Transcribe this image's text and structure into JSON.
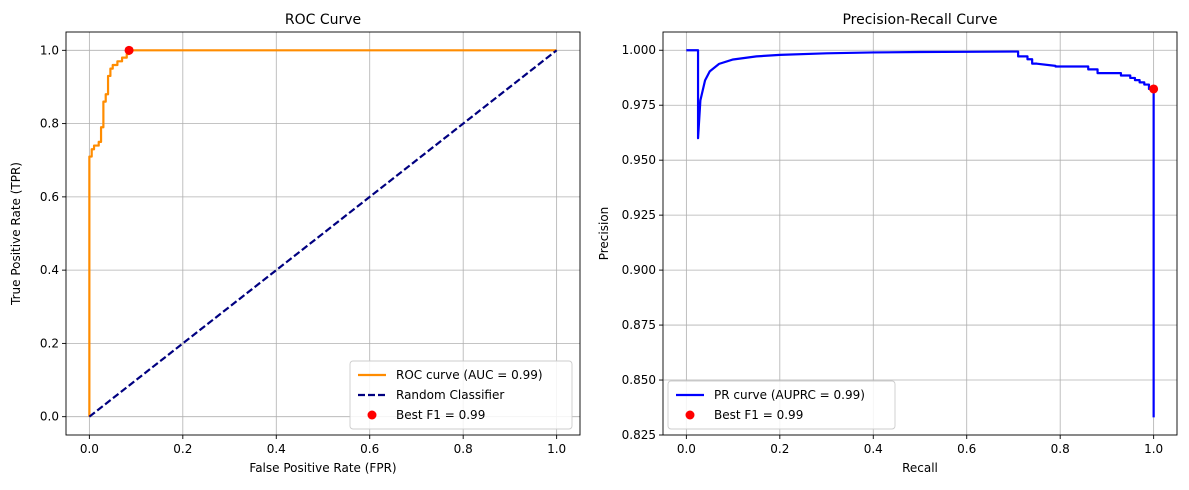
{
  "chart_data": [
    {
      "type": "line",
      "title": "ROC Curve",
      "xlabel": "False Positive Rate (FPR)",
      "ylabel": "True Positive Rate (TPR)",
      "xlim": [
        -0.05,
        1.05
      ],
      "ylim": [
        -0.05,
        1.05
      ],
      "xticks": [
        0.0,
        0.2,
        0.4,
        0.6,
        0.8,
        1.0
      ],
      "xtick_labels": [
        "0.0",
        "0.2",
        "0.4",
        "0.6",
        "0.8",
        "1.0"
      ],
      "yticks": [
        0.0,
        0.2,
        0.4,
        0.6,
        0.8,
        1.0
      ],
      "ytick_labels": [
        "0.0",
        "0.2",
        "0.4",
        "0.6",
        "0.8",
        "1.0"
      ],
      "grid": true,
      "legend_position": "lower-right",
      "series": [
        {
          "name": "ROC curve (AUC = 0.99)",
          "style": "solid",
          "color": "#ff8c00",
          "x": [
            0.0,
            0.0,
            0.005,
            0.005,
            0.01,
            0.01,
            0.02,
            0.02,
            0.025,
            0.025,
            0.03,
            0.03,
            0.035,
            0.035,
            0.04,
            0.04,
            0.045,
            0.045,
            0.05,
            0.05,
            0.06,
            0.06,
            0.07,
            0.07,
            0.08,
            0.08,
            0.085,
            0.085,
            1.0
          ],
          "y": [
            0.0,
            0.71,
            0.71,
            0.73,
            0.73,
            0.74,
            0.74,
            0.75,
            0.75,
            0.79,
            0.79,
            0.86,
            0.86,
            0.88,
            0.88,
            0.93,
            0.93,
            0.95,
            0.95,
            0.96,
            0.96,
            0.97,
            0.97,
            0.98,
            0.98,
            0.99,
            0.99,
            1.0,
            1.0
          ]
        },
        {
          "name": "Random Classifier",
          "style": "dashed",
          "color": "#000080",
          "x": [
            0.0,
            1.0
          ],
          "y": [
            0.0,
            1.0
          ]
        }
      ],
      "points": [
        {
          "name": "Best F1 = 0.99",
          "color": "#ff0000",
          "x": 0.085,
          "y": 1.0
        }
      ]
    },
    {
      "type": "line",
      "title": "Precision-Recall Curve",
      "xlabel": "Recall",
      "ylabel": "Precision",
      "xlim": [
        -0.05,
        1.05
      ],
      "ylim": [
        0.825,
        1.0083
      ],
      "xticks": [
        0.0,
        0.2,
        0.4,
        0.6,
        0.8,
        1.0
      ],
      "xtick_labels": [
        "0.0",
        "0.2",
        "0.4",
        "0.6",
        "0.8",
        "1.0"
      ],
      "yticks": [
        0.825,
        0.85,
        0.875,
        0.9,
        0.925,
        0.95,
        0.975,
        1.0
      ],
      "ytick_labels": [
        "0.825",
        "0.850",
        "0.875",
        "0.900",
        "0.925",
        "0.950",
        "0.975",
        "1.000"
      ],
      "grid": true,
      "legend_position": "lower-left",
      "series": [
        {
          "name": "PR curve (AUPRC = 0.99)",
          "style": "solid",
          "color": "#0000ff",
          "x": [
            0.0,
            0.025,
            0.025,
            0.03,
            0.04,
            0.05,
            0.07,
            0.1,
            0.15,
            0.2,
            0.3,
            0.4,
            0.5,
            0.6,
            0.7,
            0.71,
            0.71,
            0.73,
            0.73,
            0.74,
            0.74,
            0.75,
            0.75,
            0.79,
            0.79,
            0.86,
            0.86,
            0.88,
            0.88,
            0.93,
            0.93,
            0.95,
            0.95,
            0.96,
            0.96,
            0.97,
            0.97,
            0.98,
            0.98,
            0.99,
            0.99,
            1.0,
            1.0
          ],
          "y": [
            1.0,
            1.0,
            0.96,
            0.9772,
            0.9863,
            0.9904,
            0.9938,
            0.9958,
            0.9972,
            0.9979,
            0.9986,
            0.999,
            0.9992,
            0.9993,
            0.9994,
            0.9994,
            0.9972,
            0.9972,
            0.9959,
            0.9959,
            0.9939,
            0.9939,
            0.9939,
            0.9929,
            0.9926,
            0.9926,
            0.9913,
            0.9913,
            0.9896,
            0.9896,
            0.9885,
            0.9885,
            0.9874,
            0.9874,
            0.9864,
            0.9864,
            0.9854,
            0.9854,
            0.9844,
            0.9844,
            0.9824,
            0.9824,
            0.833
          ]
        }
      ],
      "points": [
        {
          "name": "Best F1 = 0.99",
          "color": "#ff0000",
          "x": 1.0,
          "y": 0.9824
        }
      ]
    }
  ]
}
